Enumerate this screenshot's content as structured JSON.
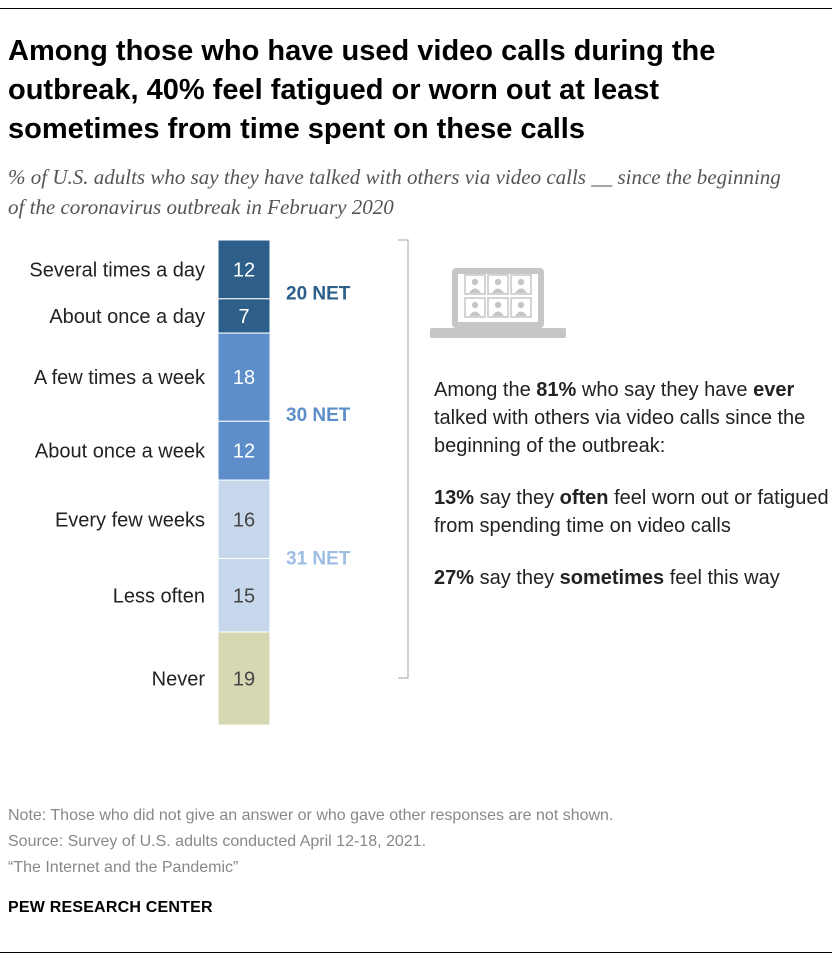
{
  "title": "Among those who have used video calls during the outbreak, 40% feel fatigued or worn out at least sometimes from time spent on these calls",
  "subtitle": "% of U.S. adults who say they have talked with others via video calls __ since the beginning of the coronavirus outbreak in February 2020",
  "chart_data": {
    "type": "bar",
    "orientation": "stacked-vertical",
    "categories": [
      "Several times a day",
      "About once a day",
      "A few times a week",
      "About once a week",
      "Every few weeks",
      "Less often",
      "Never"
    ],
    "values": [
      12,
      7,
      18,
      12,
      16,
      15,
      19
    ],
    "groups": [
      {
        "label": "20 NET",
        "members": [
          0,
          1
        ],
        "color": "#2d5f8a",
        "fill": "#2d5f8a",
        "text_color": "#ffffff"
      },
      {
        "label": "30 NET",
        "members": [
          2,
          3
        ],
        "color": "#5e8ec9",
        "fill": "#5e8ec9",
        "text_color": "#ffffff"
      },
      {
        "label": "31 NET",
        "members": [
          4,
          5
        ],
        "color": "#9dbde3",
        "fill": "#c8d8ec",
        "text_color": "#444444"
      }
    ],
    "never_fill": "#d6d8b3",
    "never_text_color": "#444444"
  },
  "callout": {
    "intro_pre": "Among the ",
    "intro_pct": "81%",
    "intro_mid": " who say they have ",
    "intro_ever": "ever",
    "intro_post": " talked with others via video calls since the beginning of the outbreak:",
    "often_pct": "13%",
    "often_mid": " say they ",
    "often_word": "often",
    "often_post": " feel worn out or fatigued from spending time on video calls",
    "sometimes_pct": "27%",
    "sometimes_mid": " say they ",
    "sometimes_word": "sometimes",
    "sometimes_post": " feel this way"
  },
  "icon": "laptop-video-call-icon",
  "notes": {
    "note": "Note: Those who did not give an answer or who gave other responses are not shown.",
    "source": "Source: Survey of U.S. adults conducted April 12-18, 2021.",
    "report": "“The Internet and the Pandemic”"
  },
  "brand": "PEW RESEARCH CENTER"
}
